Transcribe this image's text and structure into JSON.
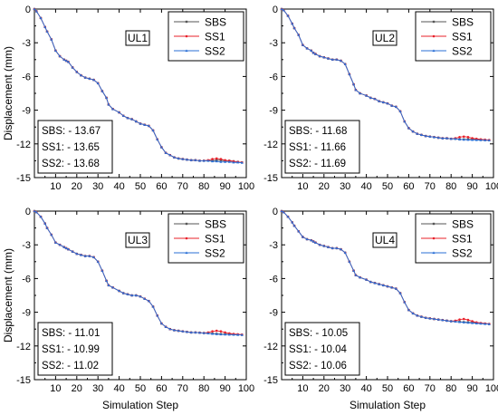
{
  "chart_data": [
    {
      "type": "line",
      "panel_label": "UL1",
      "xlabel": "",
      "ylabel": "Displacement (mm)",
      "xlim": [
        0,
        100
      ],
      "ylim": [
        -15,
        0
      ],
      "xticks": [
        "10",
        "20",
        "30",
        "40",
        "50",
        "60",
        "70",
        "80",
        "90",
        "100"
      ],
      "yticks": [
        "0",
        "-3",
        "-6",
        "-9",
        "-12",
        "-15"
      ],
      "legend": [
        "SBS",
        "SS1",
        "SS2"
      ],
      "legend_position": "top-right",
      "annotation": [
        "SBS: - 13.67",
        "SS1: - 13.65",
        "SS2: - 13.68"
      ],
      "x": [
        0,
        1,
        3,
        5,
        6,
        8,
        10,
        12,
        14,
        15,
        16,
        18,
        20,
        22,
        24,
        26,
        28,
        30,
        32,
        34,
        35,
        37,
        40,
        42,
        44,
        46,
        48,
        50,
        52,
        54,
        56,
        58,
        60,
        62,
        64,
        66,
        68,
        70,
        72,
        74,
        76,
        78,
        80,
        82,
        84,
        86,
        88,
        90,
        92,
        94,
        96,
        98
      ],
      "series": [
        {
          "name": "SBS",
          "values": [
            0,
            -0.2,
            -0.8,
            -1.6,
            -2.0,
            -2.7,
            -3.7,
            -4.2,
            -4.5,
            -4.6,
            -4.7,
            -5.2,
            -5.6,
            -5.9,
            -6.1,
            -6.2,
            -6.3,
            -6.6,
            -7.3,
            -7.9,
            -8.5,
            -8.9,
            -9.2,
            -9.5,
            -9.7,
            -9.8,
            -10.0,
            -10.2,
            -10.3,
            -10.4,
            -10.8,
            -11.6,
            -12.3,
            -12.8,
            -13.0,
            -13.2,
            -13.3,
            -13.35,
            -13.4,
            -13.45,
            -13.45,
            -13.5,
            -13.5,
            -13.5,
            -13.5,
            -13.45,
            -13.45,
            -13.5,
            -13.5,
            -13.55,
            -13.6,
            -13.65
          ]
        },
        {
          "name": "SS1",
          "values": [
            0,
            -0.2,
            -0.8,
            -1.6,
            -2.0,
            -2.7,
            -3.7,
            -4.2,
            -4.5,
            -4.6,
            -4.7,
            -5.2,
            -5.6,
            -5.9,
            -6.1,
            -6.2,
            -6.3,
            -6.6,
            -7.3,
            -7.9,
            -8.5,
            -8.9,
            -9.2,
            -9.5,
            -9.7,
            -9.8,
            -10.0,
            -10.2,
            -10.3,
            -10.4,
            -10.8,
            -11.6,
            -12.3,
            -12.8,
            -13.0,
            -13.2,
            -13.3,
            -13.35,
            -13.4,
            -13.45,
            -13.45,
            -13.5,
            -13.5,
            -13.45,
            -13.35,
            -13.3,
            -13.35,
            -13.45,
            -13.5,
            -13.55,
            -13.6,
            -13.65
          ]
        },
        {
          "name": "SS2",
          "values": [
            0,
            -0.2,
            -0.8,
            -1.6,
            -2.0,
            -2.7,
            -3.7,
            -4.2,
            -4.5,
            -4.6,
            -4.7,
            -5.2,
            -5.6,
            -5.9,
            -6.1,
            -6.2,
            -6.3,
            -6.6,
            -7.3,
            -7.9,
            -8.5,
            -8.9,
            -9.2,
            -9.5,
            -9.7,
            -9.8,
            -10.0,
            -10.2,
            -10.3,
            -10.4,
            -10.8,
            -11.6,
            -12.3,
            -12.8,
            -13.0,
            -13.2,
            -13.3,
            -13.35,
            -13.4,
            -13.45,
            -13.45,
            -13.5,
            -13.5,
            -13.5,
            -13.55,
            -13.55,
            -13.6,
            -13.6,
            -13.6,
            -13.65,
            -13.65,
            -13.68
          ]
        }
      ]
    },
    {
      "type": "line",
      "panel_label": "UL2",
      "xlabel": "",
      "ylabel": "",
      "xlim": [
        0,
        100
      ],
      "ylim": [
        -15,
        0
      ],
      "xticks": [
        "10",
        "20",
        "30",
        "40",
        "50",
        "60",
        "70",
        "80",
        "90",
        "100"
      ],
      "yticks": [
        "0",
        "-3",
        "-6",
        "-9",
        "-12",
        "-15"
      ],
      "legend": [
        "SBS",
        "SS1",
        "SS2"
      ],
      "legend_position": "top-right",
      "annotation": [
        "SBS: - 11.68",
        "SS1: - 11.66",
        "SS2: - 11.69"
      ],
      "x": [
        0,
        1,
        3,
        5,
        6,
        8,
        10,
        12,
        14,
        15,
        16,
        18,
        20,
        22,
        24,
        26,
        28,
        30,
        32,
        34,
        35,
        37,
        40,
        42,
        44,
        46,
        48,
        50,
        52,
        54,
        56,
        58,
        60,
        62,
        64,
        66,
        68,
        70,
        72,
        74,
        76,
        78,
        80,
        82,
        84,
        86,
        88,
        90,
        92,
        94,
        96,
        98
      ],
      "series": [
        {
          "name": "SBS",
          "values": [
            0,
            -0.1,
            -0.6,
            -1.3,
            -1.7,
            -2.3,
            -3.2,
            -3.5,
            -3.7,
            -3.9,
            -4.0,
            -4.2,
            -4.3,
            -4.4,
            -4.5,
            -4.5,
            -4.6,
            -4.9,
            -5.8,
            -6.7,
            -7.2,
            -7.5,
            -7.7,
            -7.9,
            -8.0,
            -8.2,
            -8.3,
            -8.4,
            -8.6,
            -8.7,
            -9.1,
            -10.0,
            -10.6,
            -10.9,
            -11.1,
            -11.2,
            -11.3,
            -11.35,
            -11.4,
            -11.45,
            -11.5,
            -11.5,
            -11.55,
            -11.55,
            -11.6,
            -11.6,
            -11.6,
            -11.6,
            -11.62,
            -11.64,
            -11.66,
            -11.68
          ]
        },
        {
          "name": "SS1",
          "values": [
            0,
            -0.1,
            -0.6,
            -1.3,
            -1.7,
            -2.3,
            -3.2,
            -3.5,
            -3.7,
            -3.9,
            -4.0,
            -4.2,
            -4.3,
            -4.4,
            -4.5,
            -4.5,
            -4.6,
            -4.9,
            -5.8,
            -6.7,
            -7.2,
            -7.5,
            -7.7,
            -7.9,
            -8.0,
            -8.2,
            -8.3,
            -8.4,
            -8.6,
            -8.7,
            -9.1,
            -10.0,
            -10.6,
            -10.9,
            -11.1,
            -11.2,
            -11.3,
            -11.35,
            -11.4,
            -11.45,
            -11.5,
            -11.5,
            -11.55,
            -11.5,
            -11.4,
            -11.35,
            -11.4,
            -11.5,
            -11.55,
            -11.6,
            -11.63,
            -11.66
          ]
        },
        {
          "name": "SS2",
          "values": [
            0,
            -0.1,
            -0.6,
            -1.3,
            -1.7,
            -2.3,
            -3.2,
            -3.5,
            -3.7,
            -3.9,
            -4.0,
            -4.2,
            -4.3,
            -4.4,
            -4.5,
            -4.5,
            -4.6,
            -4.9,
            -5.8,
            -6.7,
            -7.2,
            -7.5,
            -7.7,
            -7.9,
            -8.0,
            -8.2,
            -8.3,
            -8.4,
            -8.6,
            -8.7,
            -9.1,
            -10.0,
            -10.6,
            -10.9,
            -11.1,
            -11.2,
            -11.3,
            -11.35,
            -11.4,
            -11.45,
            -11.5,
            -11.5,
            -11.55,
            -11.55,
            -11.6,
            -11.62,
            -11.64,
            -11.65,
            -11.66,
            -11.67,
            -11.68,
            -11.69
          ]
        }
      ]
    },
    {
      "type": "line",
      "panel_label": "UL3",
      "xlabel": "Simulation Step",
      "ylabel": "Displacement (mm)",
      "xlim": [
        0,
        100
      ],
      "ylim": [
        -15,
        0
      ],
      "xticks": [
        "10",
        "20",
        "30",
        "40",
        "50",
        "60",
        "70",
        "80",
        "90",
        "100"
      ],
      "yticks": [
        "0",
        "-3",
        "-6",
        "-9",
        "-12",
        "-15"
      ],
      "legend": [
        "SBS",
        "SS1",
        "SS2"
      ],
      "legend_position": "top-right",
      "annotation": [
        "SBS: - 11.01",
        "SS1: - 10.99",
        "SS2: - 11.02"
      ],
      "x": [
        0,
        1,
        3,
        5,
        6,
        8,
        10,
        12,
        14,
        15,
        16,
        18,
        20,
        22,
        24,
        26,
        28,
        30,
        32,
        34,
        35,
        37,
        40,
        42,
        44,
        46,
        48,
        50,
        52,
        54,
        56,
        58,
        60,
        62,
        64,
        66,
        68,
        70,
        72,
        74,
        76,
        78,
        80,
        82,
        84,
        86,
        88,
        90,
        92,
        94,
        96,
        98
      ],
      "series": [
        {
          "name": "SBS",
          "values": [
            0,
            -0.1,
            -0.5,
            -1.1,
            -1.5,
            -2.1,
            -2.8,
            -3.0,
            -3.2,
            -3.3,
            -3.4,
            -3.6,
            -3.8,
            -3.9,
            -4.0,
            -4.0,
            -4.1,
            -4.5,
            -5.3,
            -6.2,
            -6.6,
            -6.8,
            -7.1,
            -7.3,
            -7.4,
            -7.5,
            -7.5,
            -7.6,
            -7.8,
            -8.0,
            -8.5,
            -9.3,
            -10.0,
            -10.3,
            -10.5,
            -10.6,
            -10.65,
            -10.7,
            -10.75,
            -10.8,
            -10.8,
            -10.82,
            -10.85,
            -10.87,
            -10.9,
            -10.92,
            -10.94,
            -10.95,
            -10.96,
            -10.98,
            -11.0,
            -11.01
          ]
        },
        {
          "name": "SS1",
          "values": [
            0,
            -0.1,
            -0.5,
            -1.1,
            -1.5,
            -2.1,
            -2.8,
            -3.0,
            -3.2,
            -3.3,
            -3.4,
            -3.6,
            -3.8,
            -3.9,
            -4.0,
            -4.0,
            -4.1,
            -4.5,
            -5.3,
            -6.2,
            -6.6,
            -6.8,
            -7.1,
            -7.3,
            -7.4,
            -7.5,
            -7.5,
            -7.6,
            -7.8,
            -8.0,
            -8.5,
            -9.3,
            -10.0,
            -10.3,
            -10.5,
            -10.6,
            -10.65,
            -10.7,
            -10.75,
            -10.8,
            -10.8,
            -10.82,
            -10.85,
            -10.8,
            -10.7,
            -10.65,
            -10.7,
            -10.8,
            -10.88,
            -10.93,
            -10.96,
            -10.99
          ]
        },
        {
          "name": "SS2",
          "values": [
            0,
            -0.1,
            -0.5,
            -1.1,
            -1.5,
            -2.1,
            -2.8,
            -3.0,
            -3.2,
            -3.3,
            -3.4,
            -3.6,
            -3.8,
            -3.9,
            -4.0,
            -4.0,
            -4.1,
            -4.5,
            -5.3,
            -6.2,
            -6.6,
            -6.8,
            -7.1,
            -7.3,
            -7.4,
            -7.5,
            -7.5,
            -7.6,
            -7.8,
            -8.0,
            -8.5,
            -9.3,
            -10.0,
            -10.3,
            -10.5,
            -10.6,
            -10.65,
            -10.7,
            -10.75,
            -10.8,
            -10.8,
            -10.82,
            -10.85,
            -10.88,
            -10.92,
            -10.95,
            -10.97,
            -10.98,
            -10.99,
            -11.0,
            -11.01,
            -11.02
          ]
        }
      ]
    },
    {
      "type": "line",
      "panel_label": "UL4",
      "xlabel": "Simulation Step",
      "ylabel": "",
      "xlim": [
        0,
        100
      ],
      "ylim": [
        -15,
        0
      ],
      "xticks": [
        "10",
        "20",
        "30",
        "40",
        "50",
        "60",
        "70",
        "80",
        "90",
        "100"
      ],
      "yticks": [
        "0",
        "-3",
        "-6",
        "-9",
        "-12",
        "-15"
      ],
      "legend": [
        "SBS",
        "SS1",
        "SS2"
      ],
      "legend_position": "top-right",
      "annotation": [
        "SBS: - 10.05",
        "SS1: - 10.04",
        "SS2: - 10.06"
      ],
      "x": [
        0,
        1,
        3,
        5,
        6,
        8,
        10,
        12,
        14,
        15,
        16,
        18,
        20,
        22,
        24,
        26,
        28,
        30,
        32,
        34,
        35,
        37,
        40,
        42,
        44,
        46,
        48,
        50,
        52,
        54,
        56,
        58,
        60,
        62,
        64,
        66,
        68,
        70,
        72,
        74,
        76,
        78,
        80,
        82,
        84,
        86,
        88,
        90,
        92,
        94,
        96,
        98
      ],
      "series": [
        {
          "name": "SBS",
          "values": [
            0,
            -0.1,
            -0.5,
            -1.0,
            -1.3,
            -1.8,
            -2.3,
            -2.5,
            -2.6,
            -2.7,
            -2.8,
            -3.0,
            -3.1,
            -3.2,
            -3.3,
            -3.3,
            -3.4,
            -3.7,
            -4.5,
            -5.3,
            -5.7,
            -5.9,
            -6.1,
            -6.3,
            -6.4,
            -6.5,
            -6.6,
            -6.7,
            -6.8,
            -6.9,
            -7.3,
            -8.1,
            -8.8,
            -9.1,
            -9.3,
            -9.4,
            -9.5,
            -9.55,
            -9.6,
            -9.65,
            -9.7,
            -9.75,
            -9.8,
            -9.82,
            -9.85,
            -9.88,
            -9.9,
            -9.92,
            -9.95,
            -9.98,
            -10.02,
            -10.05
          ]
        },
        {
          "name": "SS1",
          "values": [
            0,
            -0.1,
            -0.5,
            -1.0,
            -1.3,
            -1.8,
            -2.3,
            -2.5,
            -2.6,
            -2.7,
            -2.8,
            -3.0,
            -3.1,
            -3.2,
            -3.3,
            -3.3,
            -3.4,
            -3.7,
            -4.5,
            -5.3,
            -5.7,
            -5.9,
            -6.1,
            -6.3,
            -6.4,
            -6.5,
            -6.6,
            -6.7,
            -6.8,
            -6.9,
            -7.3,
            -8.1,
            -8.8,
            -9.1,
            -9.3,
            -9.4,
            -9.5,
            -9.55,
            -9.6,
            -9.65,
            -9.7,
            -9.75,
            -9.8,
            -9.75,
            -9.65,
            -9.6,
            -9.68,
            -9.8,
            -9.9,
            -9.96,
            -10.0,
            -10.04
          ]
        },
        {
          "name": "SS2",
          "values": [
            0,
            -0.1,
            -0.5,
            -1.0,
            -1.3,
            -1.8,
            -2.3,
            -2.5,
            -2.6,
            -2.7,
            -2.8,
            -3.0,
            -3.1,
            -3.2,
            -3.3,
            -3.3,
            -3.4,
            -3.7,
            -4.5,
            -5.3,
            -5.7,
            -5.9,
            -6.1,
            -6.3,
            -6.4,
            -6.5,
            -6.6,
            -6.7,
            -6.8,
            -6.9,
            -7.3,
            -8.1,
            -8.8,
            -9.1,
            -9.3,
            -9.4,
            -9.5,
            -9.55,
            -9.6,
            -9.65,
            -9.7,
            -9.75,
            -9.8,
            -9.83,
            -9.87,
            -9.9,
            -9.93,
            -9.96,
            -9.99,
            -10.01,
            -10.04,
            -10.06
          ]
        }
      ]
    }
  ],
  "colors": {
    "SBS": "#555555",
    "SS1": "#e8202a",
    "SS2": "#2a6fd6"
  },
  "markers": {
    "SBS": "square",
    "SS1": "circle",
    "SS2": "triangle"
  }
}
